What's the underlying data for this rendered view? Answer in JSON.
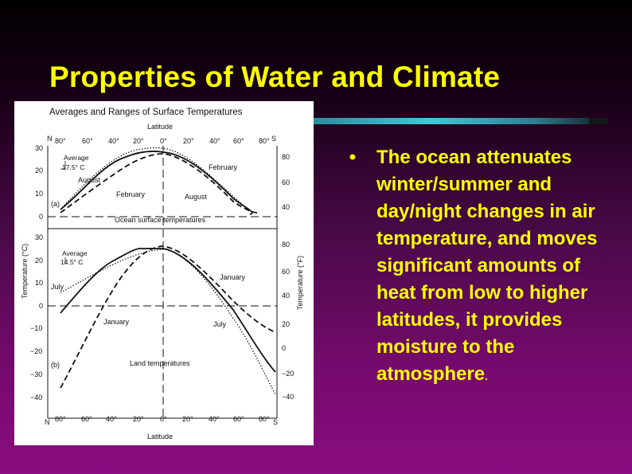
{
  "slide": {
    "title": "Properties of Water and Climate",
    "bullet_marker": "•",
    "bullet_text": "The ocean attenuates winter/summer and day/night changes in air temperature, and moves significant amounts of heat from low to higher latitudes, it provides moisture to the atmosphere",
    "bullet_end": ".",
    "colors": {
      "title": "#ffff00",
      "accent_rule": "#3fc8d8",
      "background_top": "#000000",
      "background_bottom": "#8a0c80"
    }
  },
  "figure": {
    "heading": "Averages and Ranges of Surface Temperatures",
    "latitude_label": "Latitude",
    "north": "N",
    "south": "S",
    "lat_ticks": [
      "80°",
      "60°",
      "40°",
      "20°",
      "0°",
      "20°",
      "40°",
      "60°",
      "80°"
    ],
    "y_label_c": "Temperature (°C)",
    "y_label_f": "Temperature (°F)",
    "panel_a": {
      "letter": "(a)",
      "caption": "Ocean surface temperatures",
      "c_ticks": [
        "30",
        "20",
        "10",
        "0"
      ],
      "f_ticks": [
        "80",
        "60",
        "40"
      ],
      "average_label": "Average",
      "average_value": "17.5° C",
      "series_labels": {
        "august_left": "August",
        "february_left": "February",
        "february_right": "February",
        "august_right": "August"
      }
    },
    "panel_b": {
      "letter": "(b)",
      "caption": "Land temperatures",
      "c_ticks": [
        "30",
        "20",
        "10",
        "0",
        "−10",
        "−20",
        "−30",
        "−40"
      ],
      "f_ticks": [
        "80",
        "60",
        "40",
        "20",
        "0",
        "−20",
        "−40"
      ],
      "average_label": "Average",
      "average_value": "14.5° C",
      "series_labels": {
        "july_left": "July",
        "january_left": "January",
        "january_right": "January",
        "july_right": "July"
      }
    }
  }
}
